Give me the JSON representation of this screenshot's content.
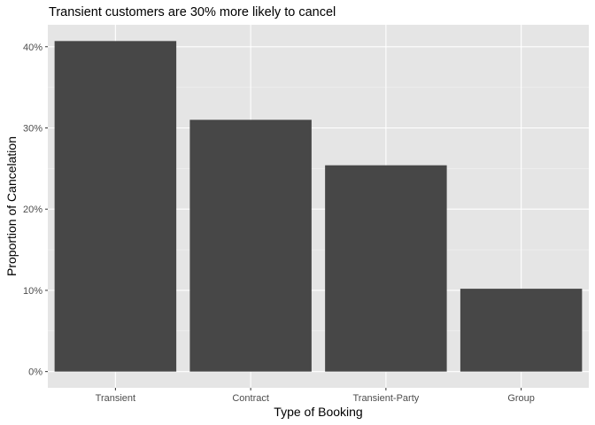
{
  "chart_data": {
    "type": "bar",
    "title": "Transient customers are 30% more likely to cancel",
    "xlabel": "Type of Booking",
    "ylabel": "Proportion of Cancelation",
    "categories": [
      "Transient",
      "Contract",
      "Transient-Party",
      "Group"
    ],
    "values": [
      0.407,
      0.31,
      0.254,
      0.102
    ],
    "yticks": [
      0,
      0.1,
      0.2,
      0.3,
      0.4
    ],
    "ytick_labels": [
      "0%",
      "10%",
      "20%",
      "30%",
      "40%"
    ],
    "ylim": [
      -0.02,
      0.427
    ],
    "grid": true,
    "legend": "none",
    "colors": {
      "bar": "#474747",
      "panel": "#e5e5e5",
      "grid_major": "#ffffff",
      "grid_minor": "#f2f2f2",
      "tick_text": "#4d4d4d",
      "tick_mark": "#333333"
    }
  }
}
